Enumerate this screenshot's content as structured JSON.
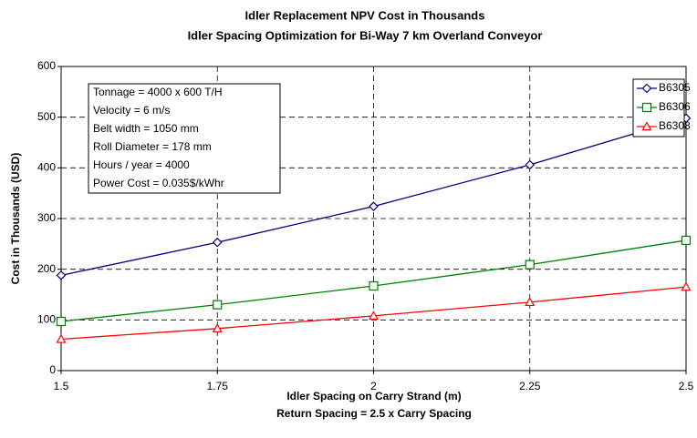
{
  "chart_data": {
    "type": "line",
    "title": "Idler Replacement NPV Cost in Thousands",
    "subtitle": "Idler Spacing Optimization for Bi-Way 7 km Overland Conveyor",
    "x_label": "Idler Spacing on Carry Strand (m)",
    "x_label_2": "Return Spacing = 2.5 x Carry Spacing",
    "y_label": "Cost in Thousands (USD)",
    "annotations": [
      "Tonnage = 4000 x 600 T/H",
      "Velocity = 6 m/s",
      "Belt width = 1050 mm",
      "Roll Diameter = 178 mm",
      "Hours / year = 4000",
      "Power Cost = 0.035$/kWhr"
    ],
    "x": [
      1.5,
      1.75,
      2,
      2.25,
      2.5
    ],
    "series": [
      {
        "name": "B6305",
        "color": "#000080",
        "marker": "diamond",
        "values": [
          188,
          253,
          324,
          406,
          498
        ]
      },
      {
        "name": "B6306",
        "color": "#008000",
        "marker": "square",
        "values": [
          97,
          130,
          167,
          209,
          257
        ]
      },
      {
        "name": "B6308",
        "color": "#ff0000",
        "marker": "triangle",
        "values": [
          62,
          83,
          108,
          135,
          165
        ]
      }
    ],
    "xlim": [
      1.5,
      2.5
    ],
    "xticks": [
      1.5,
      1.75,
      2,
      2.25,
      2.5
    ],
    "ylim": [
      0,
      600
    ],
    "yticks": [
      0,
      100,
      200,
      300,
      400,
      500,
      600
    ],
    "grid": true,
    "legend": "top-right"
  }
}
